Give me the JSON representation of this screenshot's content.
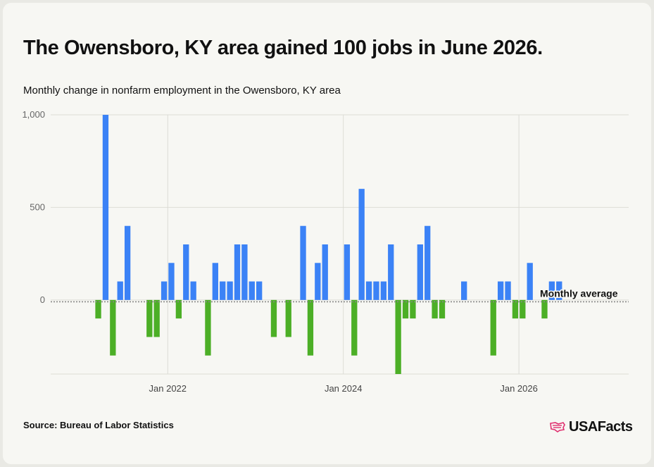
{
  "title": "The Owensboro, KY area gained 100 jobs in June 2026.",
  "subtitle": "Monthly change in nonfarm employment in the Owensboro, KY area",
  "source": "Source: Bureau of Labor Statistics",
  "brand": {
    "name": "USAFacts",
    "icon": "usa-flag-map-icon",
    "icon_color": "#e0306f"
  },
  "colors": {
    "positive": "#3b82f6",
    "negative": "#4caf26",
    "grid": "#dcdcd6",
    "average_line": "#888888"
  },
  "chart_data": {
    "type": "bar",
    "x_axis": {
      "kind": "date",
      "ticks": [
        {
          "date": "2022-01",
          "label": "Jan 2022"
        },
        {
          "date": "2024-01",
          "label": "Jan 2024"
        },
        {
          "date": "2026-01",
          "label": "Jan 2026"
        }
      ],
      "range": [
        "2020-09",
        "2027-04"
      ]
    },
    "y_axis": {
      "ticks": [
        {
          "value": 0,
          "label": "0"
        },
        {
          "value": 500,
          "label": "500"
        },
        {
          "value": 1000,
          "label": "1,000"
        }
      ],
      "range": [
        -400,
        1000
      ]
    },
    "grid": true,
    "reference_line": {
      "label": "Monthly average",
      "value": -10
    },
    "series": [
      {
        "points": [
          {
            "date": "2021-03",
            "value": -100
          },
          {
            "date": "2021-04",
            "value": 1000
          },
          {
            "date": "2021-05",
            "value": -300
          },
          {
            "date": "2021-06",
            "value": 100
          },
          {
            "date": "2021-07",
            "value": 400
          },
          {
            "date": "2021-08",
            "value": 0
          },
          {
            "date": "2021-09",
            "value": 0
          },
          {
            "date": "2021-10",
            "value": -200
          },
          {
            "date": "2021-11",
            "value": -200
          },
          {
            "date": "2021-12",
            "value": 100
          },
          {
            "date": "2022-01",
            "value": 200
          },
          {
            "date": "2022-02",
            "value": -100
          },
          {
            "date": "2022-03",
            "value": 300
          },
          {
            "date": "2022-04",
            "value": 100
          },
          {
            "date": "2022-05",
            "value": 0
          },
          {
            "date": "2022-06",
            "value": -300
          },
          {
            "date": "2022-07",
            "value": 200
          },
          {
            "date": "2022-08",
            "value": 100
          },
          {
            "date": "2022-09",
            "value": 100
          },
          {
            "date": "2022-10",
            "value": 300
          },
          {
            "date": "2022-11",
            "value": 300
          },
          {
            "date": "2022-12",
            "value": 100
          },
          {
            "date": "2023-01",
            "value": 100
          },
          {
            "date": "2023-02",
            "value": 0
          },
          {
            "date": "2023-03",
            "value": -200
          },
          {
            "date": "2023-04",
            "value": 0
          },
          {
            "date": "2023-05",
            "value": -200
          },
          {
            "date": "2023-06",
            "value": 0
          },
          {
            "date": "2023-07",
            "value": 400
          },
          {
            "date": "2023-08",
            "value": -300
          },
          {
            "date": "2023-09",
            "value": 200
          },
          {
            "date": "2023-10",
            "value": 300
          },
          {
            "date": "2023-11",
            "value": 0
          },
          {
            "date": "2023-12",
            "value": 0
          },
          {
            "date": "2024-01",
            "value": 300
          },
          {
            "date": "2024-02",
            "value": -300
          },
          {
            "date": "2024-03",
            "value": 600
          },
          {
            "date": "2024-04",
            "value": 100
          },
          {
            "date": "2024-05",
            "value": 100
          },
          {
            "date": "2024-06",
            "value": 100
          },
          {
            "date": "2024-07",
            "value": 300
          },
          {
            "date": "2024-08",
            "value": -400
          },
          {
            "date": "2024-09",
            "value": -100
          },
          {
            "date": "2024-10",
            "value": -100
          },
          {
            "date": "2024-11",
            "value": 300
          },
          {
            "date": "2024-12",
            "value": 400
          },
          {
            "date": "2025-01",
            "value": -100
          },
          {
            "date": "2025-02",
            "value": -100
          },
          {
            "date": "2025-03",
            "value": 0
          },
          {
            "date": "2025-04",
            "value": 0
          },
          {
            "date": "2025-05",
            "value": 100
          },
          {
            "date": "2025-06",
            "value": 0
          },
          {
            "date": "2025-07",
            "value": 0
          },
          {
            "date": "2025-08",
            "value": 0
          },
          {
            "date": "2025-09",
            "value": -300
          },
          {
            "date": "2025-10",
            "value": 100
          },
          {
            "date": "2025-11",
            "value": 100
          },
          {
            "date": "2025-12",
            "value": -100
          },
          {
            "date": "2026-01",
            "value": -100
          },
          {
            "date": "2026-02",
            "value": 200
          },
          {
            "date": "2026-03",
            "value": 0
          },
          {
            "date": "2026-04",
            "value": -100
          },
          {
            "date": "2026-05",
            "value": 100
          },
          {
            "date": "2026-06",
            "value": 100
          }
        ]
      }
    ]
  }
}
